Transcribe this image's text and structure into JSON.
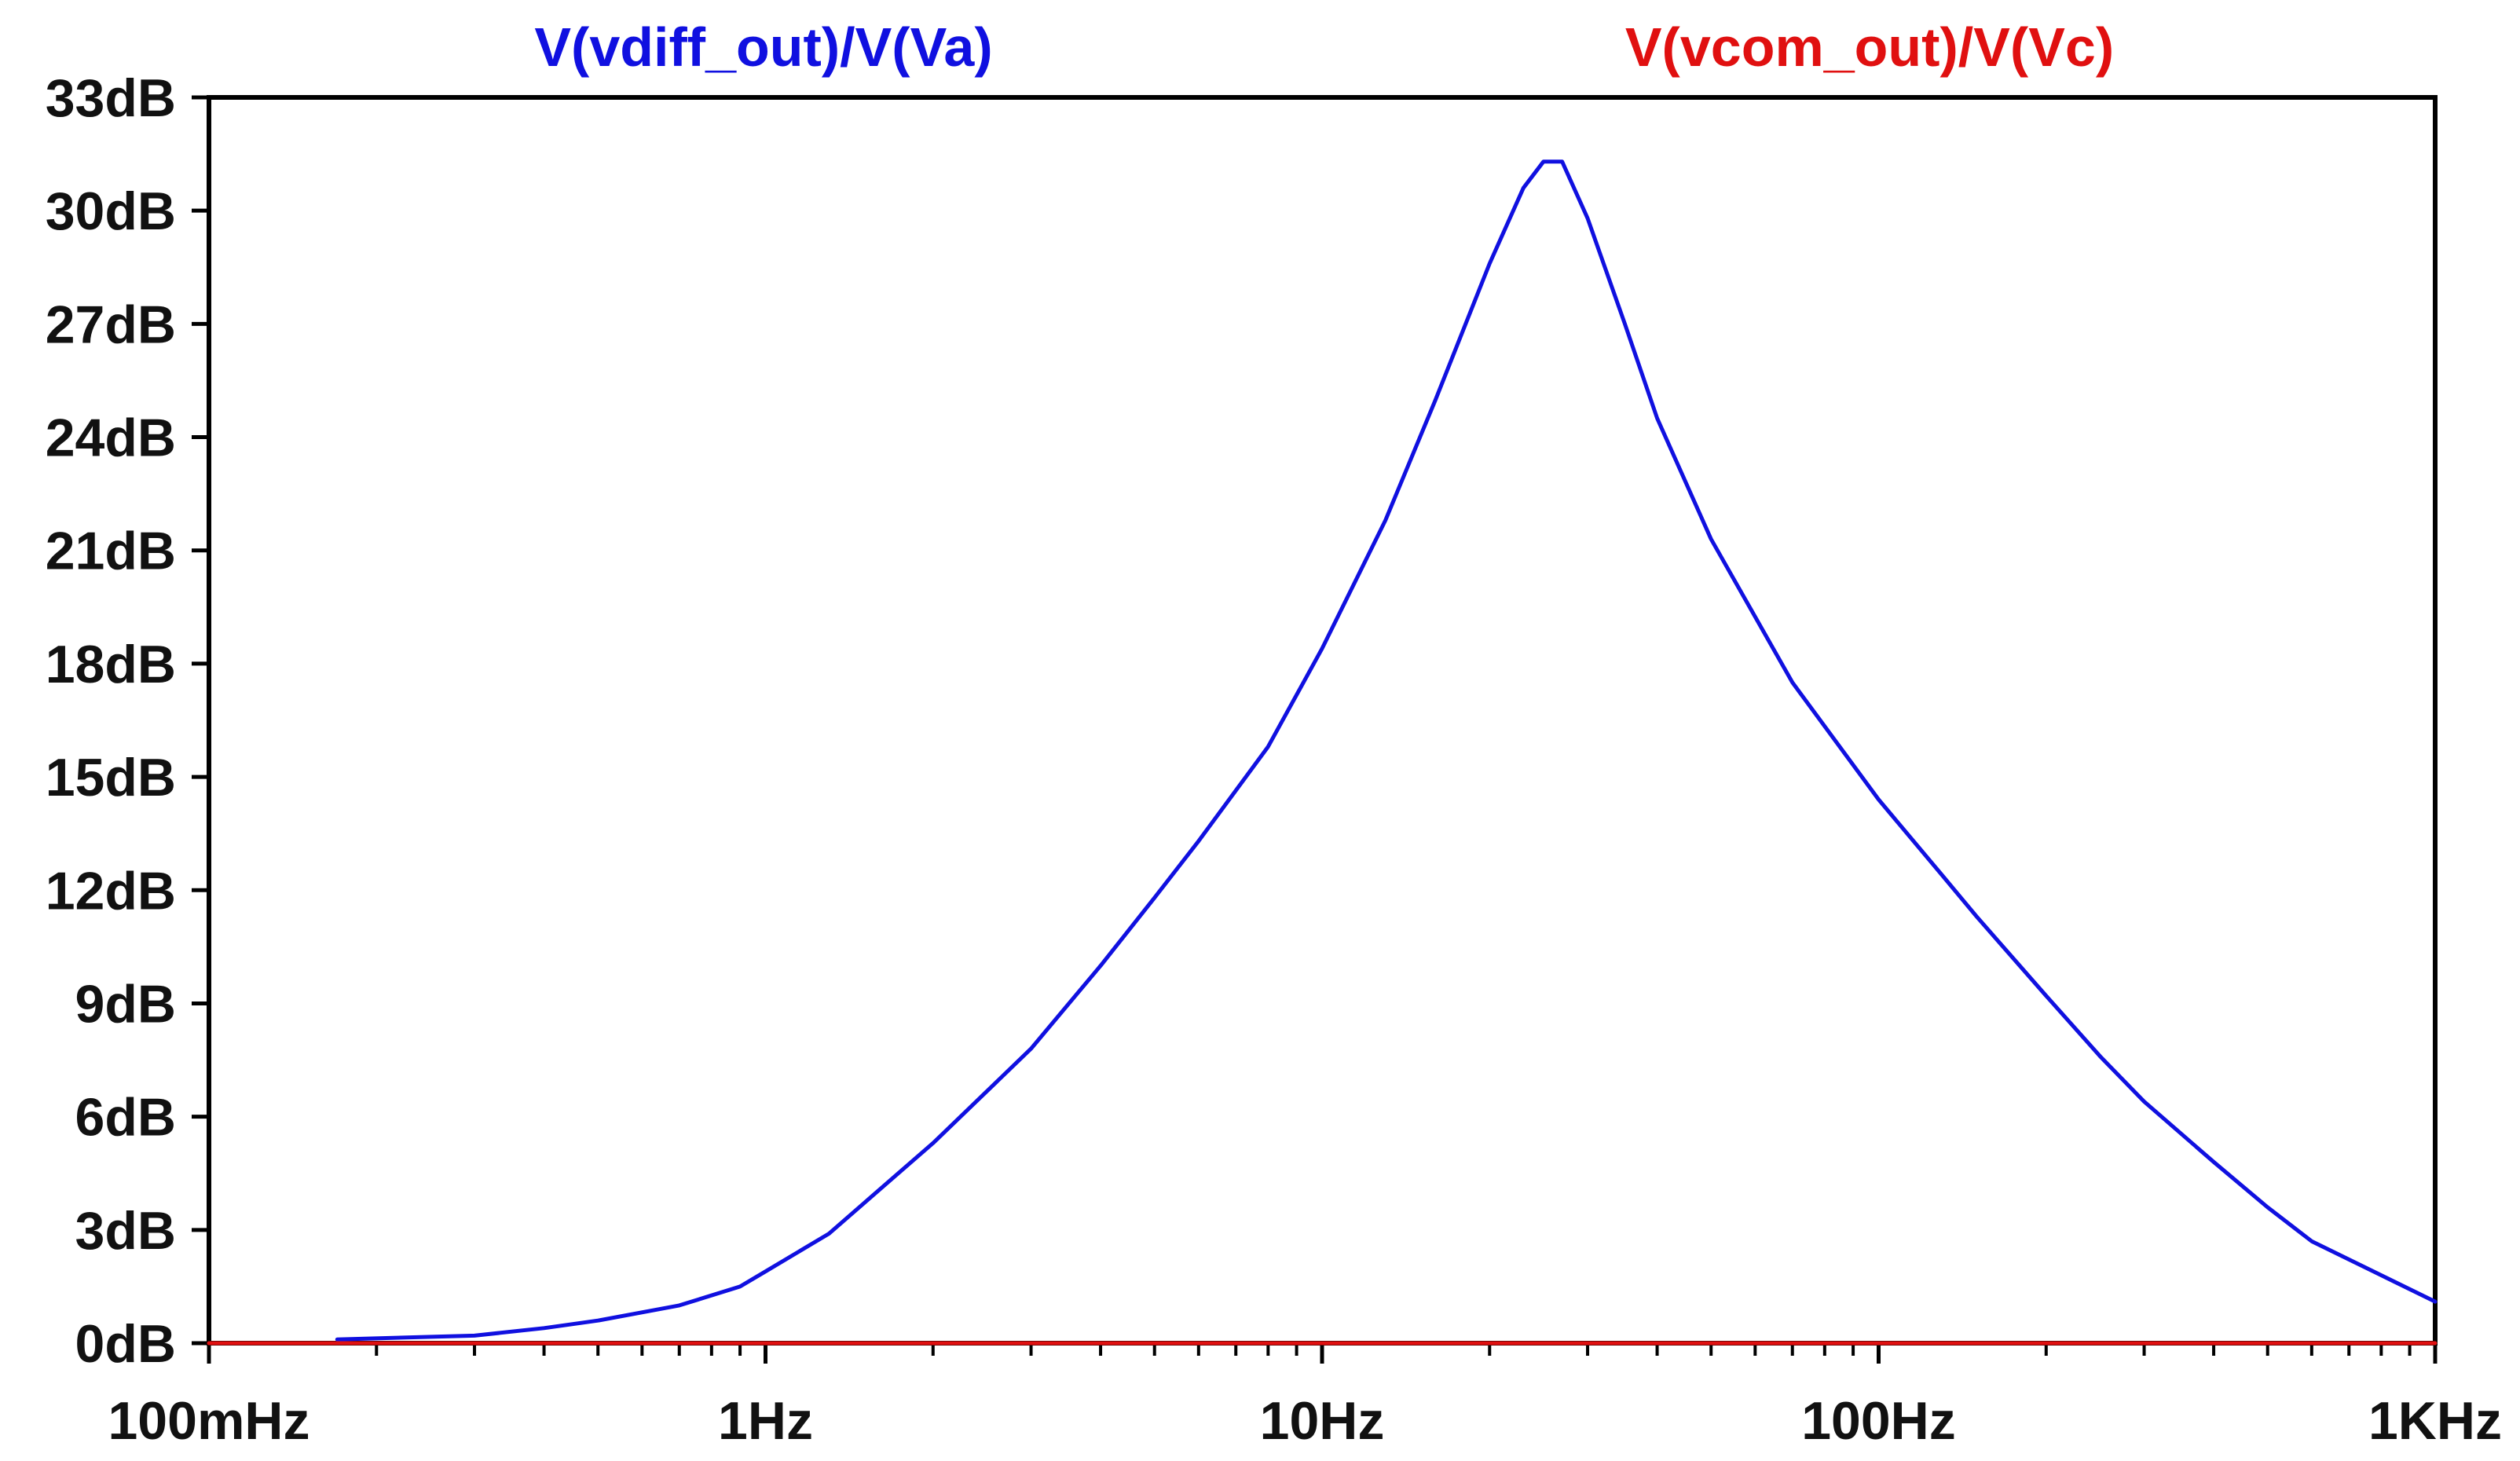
{
  "chart_data": {
    "type": "line",
    "x_scale": "log",
    "xlim": [
      0.1,
      1000
    ],
    "ylim": [
      0,
      33
    ],
    "x_ticks": [
      0.1,
      1,
      10,
      100,
      1000
    ],
    "x_tick_labels": [
      "100mHz",
      "1Hz",
      "10Hz",
      "100Hz",
      "1KHz"
    ],
    "y_ticks": [
      0,
      3,
      6,
      9,
      12,
      15,
      18,
      21,
      24,
      27,
      30,
      33
    ],
    "y_tick_labels": [
      "0dB",
      "3dB",
      "6dB",
      "9dB",
      "12dB",
      "15dB",
      "18dB",
      "21dB",
      "24dB",
      "27dB",
      "30dB",
      "33dB"
    ],
    "grid": false,
    "legend_placement": "top",
    "series": [
      {
        "name": "V(vdiff_out)/V(Va)",
        "color": "#1010e0",
        "x": [
          0.17,
          0.3,
          0.4,
          0.5,
          0.7,
          0.9,
          1,
          1.3,
          1.5,
          2,
          3,
          4,
          5,
          6,
          8,
          10,
          13,
          16,
          20,
          23,
          25,
          27,
          30,
          35,
          40,
          50,
          70,
          100,
          130,
          150,
          200,
          250,
          300,
          400,
          500,
          600,
          800,
          1000
        ],
        "y": [
          0.1,
          0.2,
          0.4,
          0.6,
          1.0,
          1.5,
          1.9,
          2.9,
          3.7,
          5.3,
          7.8,
          10.0,
          11.8,
          13.3,
          15.8,
          18.4,
          21.8,
          25.0,
          28.6,
          30.6,
          31.3,
          31.3,
          29.8,
          27.0,
          24.5,
          21.3,
          17.5,
          14.4,
          12.4,
          11.3,
          9.2,
          7.6,
          6.4,
          4.8,
          3.6,
          2.7,
          1.8,
          1.1
        ]
      },
      {
        "name": "V(vcom_out)/V(Vc)",
        "color": "#e01010",
        "x": [
          0.1,
          1000
        ],
        "y": [
          0,
          0
        ]
      }
    ]
  }
}
